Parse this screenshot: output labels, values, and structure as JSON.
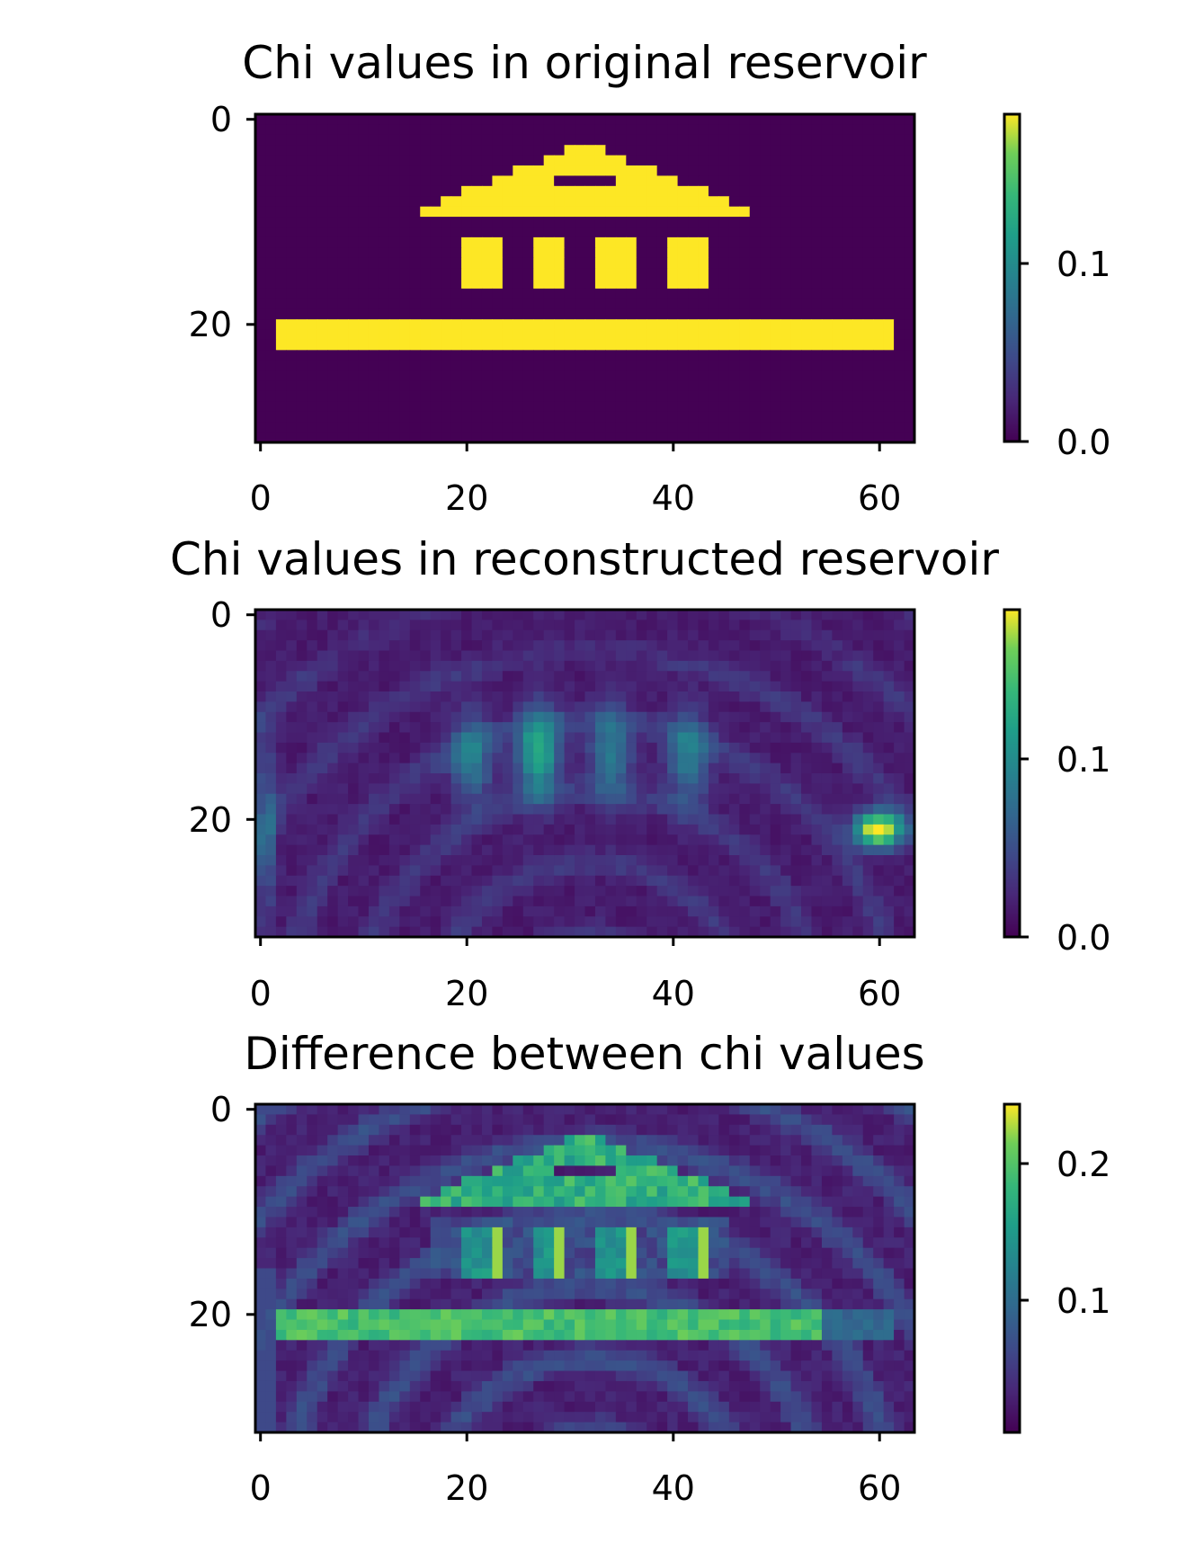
{
  "chart_data": [
    {
      "type": "heatmap",
      "title": "Chi values in original reservoir",
      "grid_shape": [
        32,
        64
      ],
      "xticks": [
        "0",
        "20",
        "40",
        "60"
      ],
      "yticks": [
        "0",
        "20"
      ],
      "xlim": [
        -0.5,
        63.5
      ],
      "ylim": [
        31.5,
        -0.5
      ],
      "colormap": "viridis",
      "color_range": [
        0.0,
        0.18
      ],
      "colorbar_ticks": [
        {
          "value": 0.0,
          "label": "0.0"
        },
        {
          "value": 0.1,
          "label": "0.1"
        }
      ],
      "regions": [
        {
          "shape": "roof",
          "rows": [
            3,
            9
          ],
          "cols": [
            18,
            45
          ],
          "value": 0.18
        },
        {
          "shape": "rect",
          "name": "roof-slot",
          "rows": [
            6,
            6
          ],
          "cols": [
            29,
            34
          ],
          "value": 0.0
        },
        {
          "shape": "rect",
          "name": "column-1",
          "rows": [
            12,
            16
          ],
          "cols": [
            20,
            23
          ],
          "value": 0.18
        },
        {
          "shape": "rect",
          "name": "column-2",
          "rows": [
            12,
            16
          ],
          "cols": [
            27,
            29
          ],
          "value": 0.18
        },
        {
          "shape": "rect",
          "name": "column-3",
          "rows": [
            12,
            16
          ],
          "cols": [
            33,
            36
          ],
          "value": 0.18
        },
        {
          "shape": "rect",
          "name": "column-4",
          "rows": [
            12,
            16
          ],
          "cols": [
            40,
            43
          ],
          "value": 0.18
        },
        {
          "shape": "rect",
          "name": "floor",
          "rows": [
            20,
            22
          ],
          "cols": [
            2,
            61
          ],
          "value": 0.18
        }
      ],
      "background_value": 0.0
    },
    {
      "type": "heatmap",
      "title": "Chi values in reconstructed reservoir",
      "grid_shape": [
        32,
        64
      ],
      "xticks": [
        "0",
        "20",
        "40",
        "60"
      ],
      "yticks": [
        "0",
        "20"
      ],
      "xlim": [
        -0.5,
        63.5
      ],
      "ylim": [
        31.5,
        -0.5
      ],
      "colormap": "viridis",
      "color_range": [
        0.0,
        0.18
      ],
      "colorbar_ticks": [
        {
          "value": 0.0,
          "label": "0.0"
        },
        {
          "value": 0.1,
          "label": "0.1"
        }
      ],
      "features": [
        {
          "name": "column-blob-1",
          "row": 14,
          "col": 20.5,
          "peak": 0.07
        },
        {
          "name": "column-blob-2",
          "row": 13.5,
          "col": 27,
          "peak": 0.11
        },
        {
          "name": "column-blob-3",
          "row": 13.5,
          "col": 34,
          "peak": 0.07
        },
        {
          "name": "column-blob-4",
          "row": 14,
          "col": 41.5,
          "peak": 0.07
        },
        {
          "name": "floor-end-hotspot",
          "row": 21,
          "col": 60,
          "peak": 0.18
        },
        {
          "name": "left-edge-band",
          "row": 21,
          "col": 0.5,
          "peak": 0.05
        }
      ],
      "background_value": 0.01
    },
    {
      "type": "heatmap",
      "title": "Difference between chi values",
      "grid_shape": [
        32,
        64
      ],
      "xticks": [
        "0",
        "20",
        "40",
        "60"
      ],
      "yticks": [
        "0",
        "20"
      ],
      "xlim": [
        -0.5,
        63.5
      ],
      "ylim": [
        31.5,
        -0.5
      ],
      "colormap": "viridis",
      "color_range": [
        0.0,
        0.24
      ],
      "colorbar_ticks": [
        {
          "value": 0.1,
          "label": "0.1"
        },
        {
          "value": 0.2,
          "label": "0.2"
        }
      ],
      "features": [
        {
          "name": "roof",
          "value": 0.17
        },
        {
          "name": "columns",
          "value": 0.13,
          "bright_edges": 0.22
        },
        {
          "name": "floor",
          "value": 0.19
        },
        {
          "name": "floor-right-end",
          "cols": [
            55,
            61
          ],
          "value": 0.08
        }
      ],
      "background_value": 0.015
    }
  ]
}
